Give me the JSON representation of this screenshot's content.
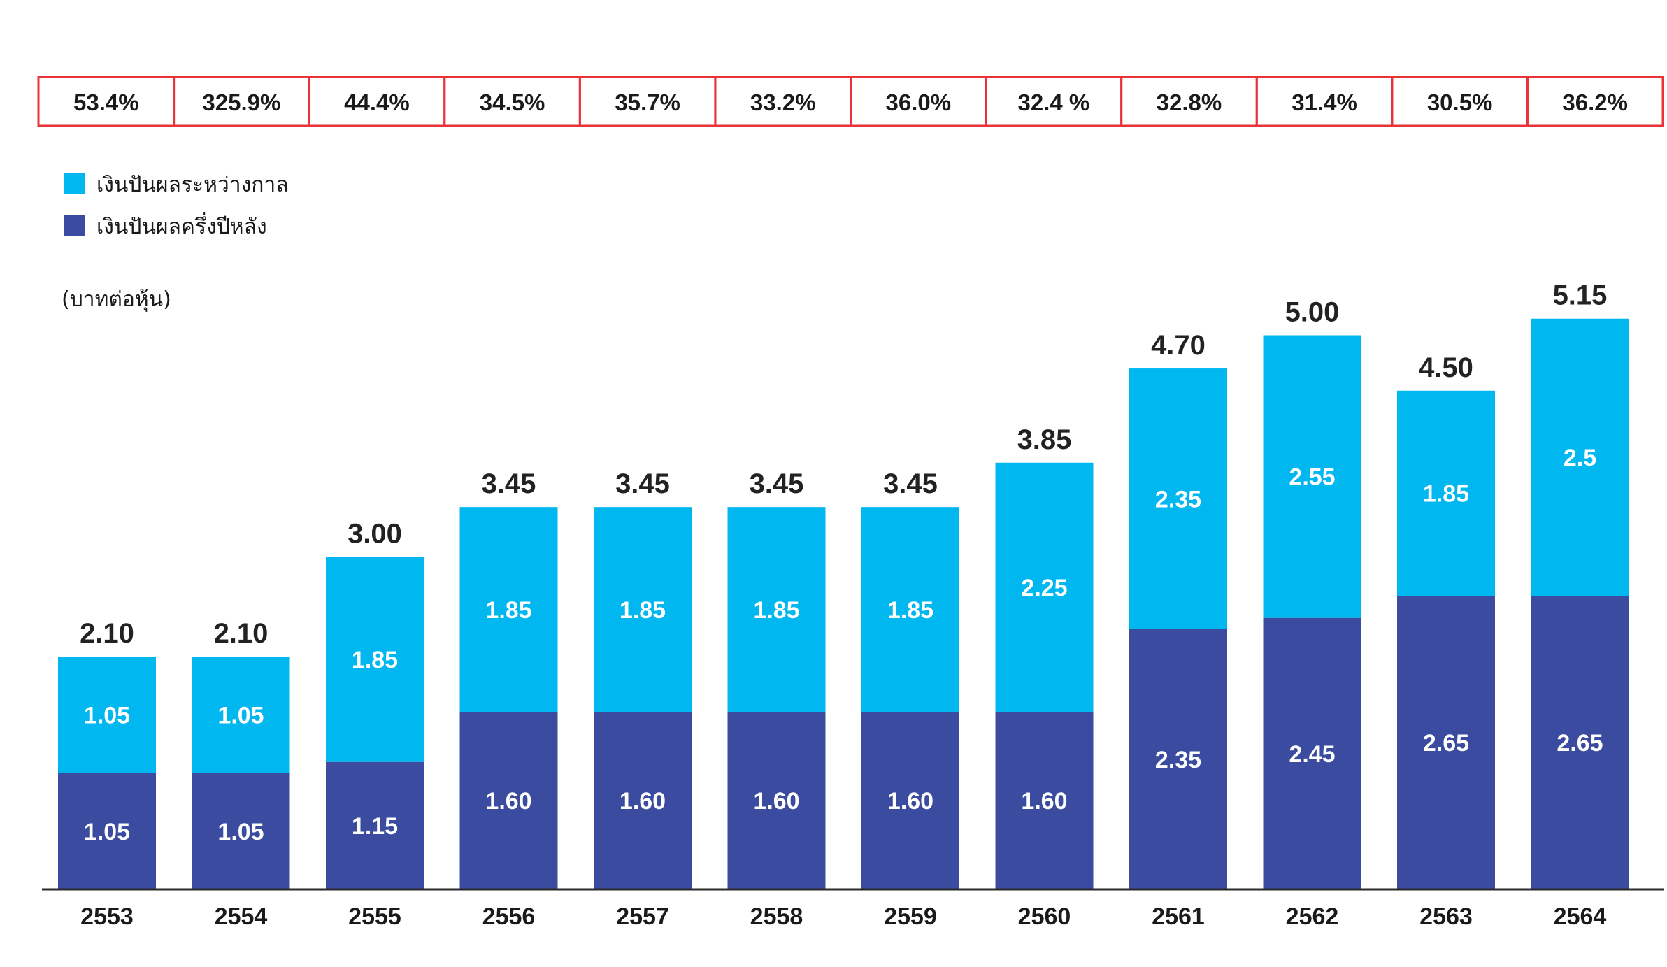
{
  "chart_data": {
    "type": "bar",
    "stacked": true,
    "categories": [
      "2553",
      "2554",
      "2555",
      "2556",
      "2557",
      "2558",
      "2559",
      "2560",
      "2561",
      "2562",
      "2563",
      "2564"
    ],
    "series": [
      {
        "name": "เงินปันผลครึ่งปีหลัง",
        "color": "#3a4ba0",
        "values": [
          1.05,
          1.05,
          1.15,
          1.6,
          1.6,
          1.6,
          1.6,
          1.6,
          2.35,
          2.45,
          2.65,
          2.65
        ],
        "labels": [
          "1.05",
          "1.05",
          "1.15",
          "1.60",
          "1.60",
          "1.60",
          "1.60",
          "1.60",
          "2.35",
          "2.45",
          "2.65",
          "2.65"
        ]
      },
      {
        "name": "เงินปันผลระหว่างกาล",
        "color": "#00b7ef",
        "values": [
          1.05,
          1.05,
          1.85,
          1.85,
          1.85,
          1.85,
          1.85,
          2.25,
          2.35,
          2.55,
          1.85,
          2.5
        ],
        "labels": [
          "1.05",
          "1.05",
          "1.85",
          "1.85",
          "1.85",
          "1.85",
          "1.85",
          "2.25",
          "2.35",
          "2.55",
          "1.85",
          "2.5"
        ]
      }
    ],
    "totals": [
      "2.10",
      "2.10",
      "3.00",
      "3.45",
      "3.45",
      "3.45",
      "3.45",
      "3.85",
      "4.70",
      "5.00",
      "4.50",
      "5.15"
    ],
    "ratios": [
      "53.4%",
      "325.9%",
      "44.4%",
      "34.5%",
      "35.7%",
      "33.2%",
      "36.0%",
      "32.4 %",
      "32.8%",
      "31.4%",
      "30.5%",
      "36.2%"
    ],
    "unit_label": "(บาทต่อหุ้น)",
    "legend_position": "top-left",
    "ratio_border_color": "#e8333a",
    "ylim": [
      0,
      5.15
    ],
    "grid": false
  }
}
